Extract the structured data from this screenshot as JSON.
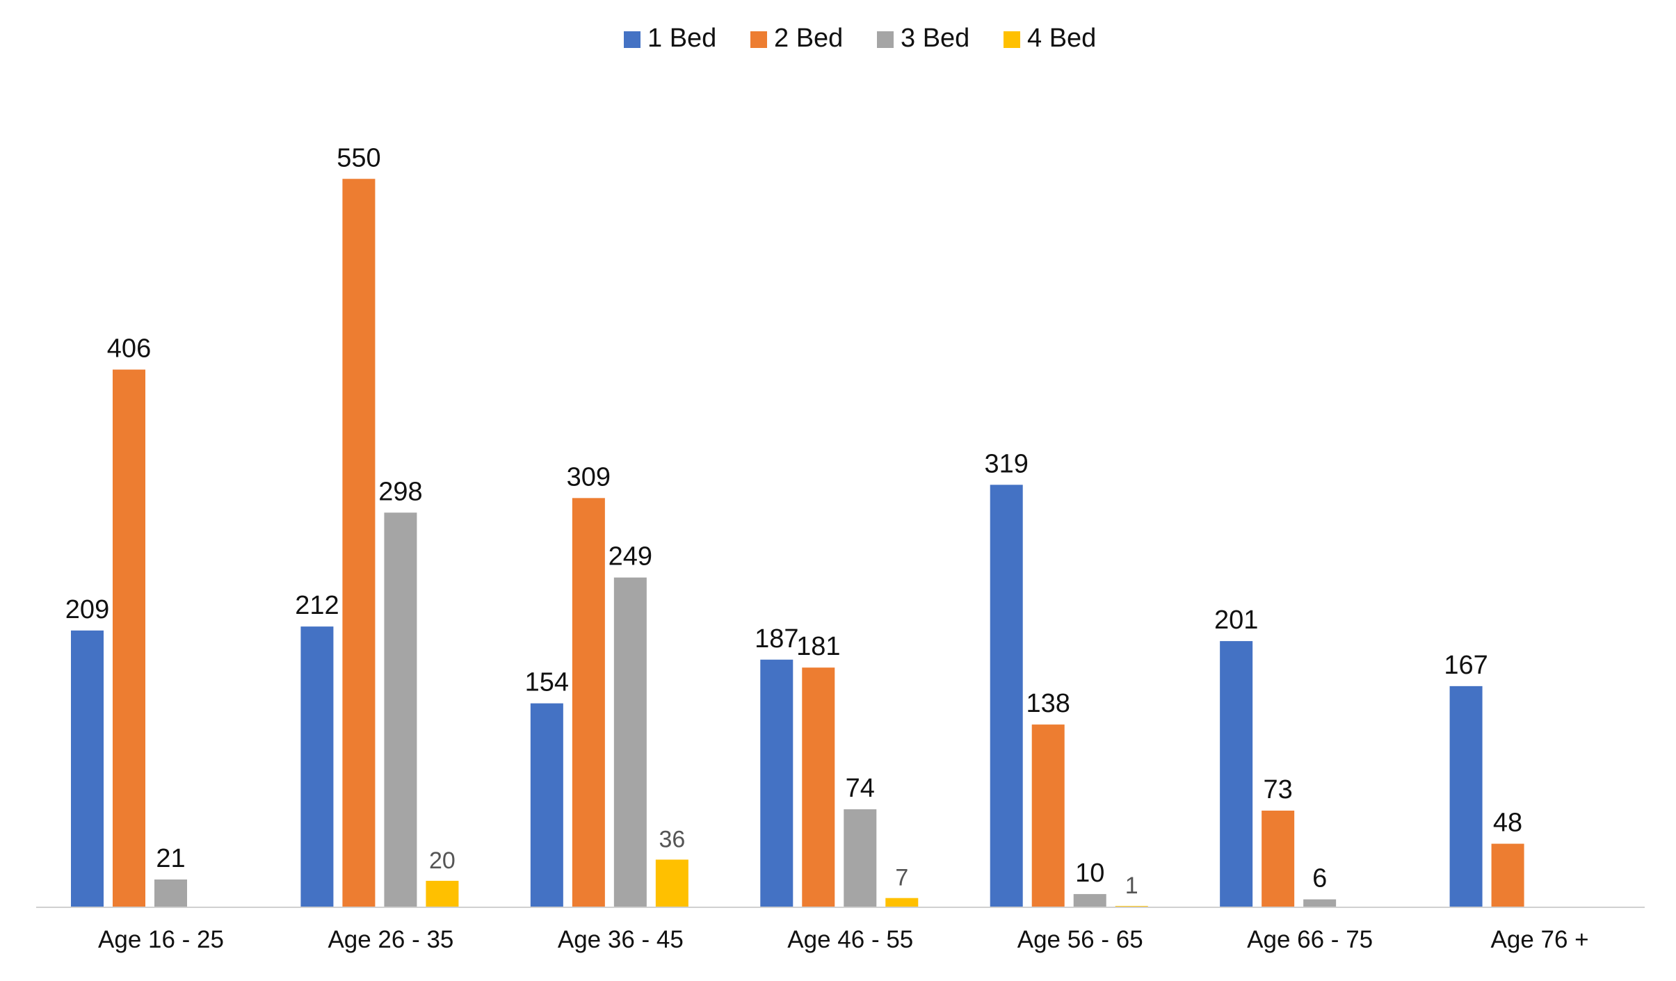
{
  "chart_data": {
    "type": "bar",
    "title": "",
    "xlabel": "",
    "ylabel": "",
    "categories": [
      "Age 16 - 25",
      "Age 26 - 35",
      "Age 36 - 45",
      "Age 46 - 55",
      "Age 56 - 65",
      "Age 66 - 75",
      "Age 76 +"
    ],
    "series": [
      {
        "name": "1 Bed",
        "color": "#4472C4",
        "values": [
          209,
          212,
          154,
          187,
          319,
          201,
          167
        ]
      },
      {
        "name": "2 Bed",
        "color": "#ED7D31",
        "values": [
          406,
          550,
          309,
          181,
          138,
          73,
          48
        ]
      },
      {
        "name": "3 Bed",
        "color": "#A5A5A5",
        "values": [
          21,
          298,
          249,
          74,
          10,
          6,
          null
        ]
      },
      {
        "name": "4 Bed",
        "color": "#FFC000",
        "values": [
          null,
          20,
          36,
          7,
          1,
          null,
          null
        ]
      }
    ],
    "ylim": [
      0,
      600
    ],
    "grid": false,
    "legend": "top-center",
    "data_labels": true
  }
}
